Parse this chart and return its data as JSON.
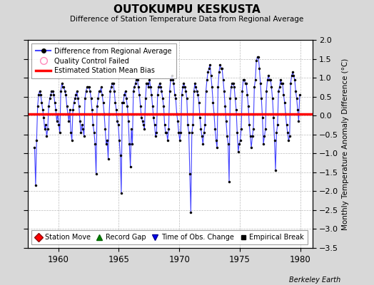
{
  "title": "OUTOKUMPU KESKUSTA",
  "subtitle": "Difference of Station Temperature Data from Regional Average",
  "ylabel": "Monthly Temperature Anomaly Difference (°C)",
  "xlim": [
    1957.5,
    1981.0
  ],
  "ylim": [
    -3.5,
    2.0
  ],
  "yticks": [
    -3.5,
    -3.0,
    -2.5,
    -2.0,
    -1.5,
    -1.0,
    -0.5,
    0.0,
    0.5,
    1.0,
    1.5,
    2.0
  ],
  "xticks": [
    1960,
    1965,
    1970,
    1975,
    1980
  ],
  "bias_value": 0.05,
  "line_color": "#4444FF",
  "bias_color": "#FF0000",
  "bg_color": "#D8D8D8",
  "plot_bg_color": "#FFFFFF",
  "data": [
    [
      1958.042,
      -0.85
    ],
    [
      1958.125,
      -1.85
    ],
    [
      1958.208,
      -0.65
    ],
    [
      1958.292,
      0.25
    ],
    [
      1958.375,
      0.55
    ],
    [
      1958.458,
      0.65
    ],
    [
      1958.542,
      0.55
    ],
    [
      1958.625,
      0.35
    ],
    [
      1958.708,
      0.15
    ],
    [
      1958.792,
      -0.05
    ],
    [
      1958.875,
      -0.35
    ],
    [
      1958.958,
      -0.25
    ],
    [
      1959.042,
      -0.55
    ],
    [
      1959.125,
      -0.35
    ],
    [
      1959.208,
      0.25
    ],
    [
      1959.292,
      0.45
    ],
    [
      1959.375,
      0.55
    ],
    [
      1959.458,
      0.65
    ],
    [
      1959.542,
      0.65
    ],
    [
      1959.625,
      0.55
    ],
    [
      1959.708,
      0.35
    ],
    [
      1959.792,
      0.15
    ],
    [
      1959.875,
      -0.15
    ],
    [
      1959.958,
      0.05
    ],
    [
      1960.042,
      -0.25
    ],
    [
      1960.125,
      -0.45
    ],
    [
      1960.208,
      0.65
    ],
    [
      1960.292,
      0.85
    ],
    [
      1960.375,
      0.75
    ],
    [
      1960.458,
      0.75
    ],
    [
      1960.542,
      0.65
    ],
    [
      1960.625,
      0.55
    ],
    [
      1960.708,
      0.25
    ],
    [
      1960.792,
      0.05
    ],
    [
      1960.875,
      -0.15
    ],
    [
      1960.958,
      0.15
    ],
    [
      1961.042,
      -0.45
    ],
    [
      1961.125,
      -0.65
    ],
    [
      1961.208,
      0.15
    ],
    [
      1961.292,
      0.35
    ],
    [
      1961.375,
      0.45
    ],
    [
      1961.458,
      0.55
    ],
    [
      1961.542,
      0.65
    ],
    [
      1961.625,
      0.45
    ],
    [
      1961.708,
      0.25
    ],
    [
      1961.792,
      -0.15
    ],
    [
      1961.875,
      -0.45
    ],
    [
      1961.958,
      -0.25
    ],
    [
      1962.042,
      -0.35
    ],
    [
      1962.125,
      -0.55
    ],
    [
      1962.208,
      0.45
    ],
    [
      1962.292,
      0.65
    ],
    [
      1962.375,
      0.75
    ],
    [
      1962.458,
      0.75
    ],
    [
      1962.542,
      0.75
    ],
    [
      1962.625,
      0.65
    ],
    [
      1962.708,
      0.45
    ],
    [
      1962.792,
      0.15
    ],
    [
      1962.875,
      -0.25
    ],
    [
      1962.958,
      -0.45
    ],
    [
      1963.042,
      -0.75
    ],
    [
      1963.125,
      -1.55
    ],
    [
      1963.208,
      0.25
    ],
    [
      1963.292,
      0.45
    ],
    [
      1963.375,
      0.65
    ],
    [
      1963.458,
      0.65
    ],
    [
      1963.542,
      0.75
    ],
    [
      1963.625,
      0.55
    ],
    [
      1963.708,
      0.35
    ],
    [
      1963.792,
      0.05
    ],
    [
      1963.875,
      -0.35
    ],
    [
      1963.958,
      -0.75
    ],
    [
      1964.042,
      -0.65
    ],
    [
      1964.125,
      -1.15
    ],
    [
      1964.208,
      0.05
    ],
    [
      1964.292,
      0.65
    ],
    [
      1964.375,
      0.75
    ],
    [
      1964.458,
      0.85
    ],
    [
      1964.542,
      0.85
    ],
    [
      1964.625,
      0.65
    ],
    [
      1964.708,
      0.35
    ],
    [
      1964.792,
      0.15
    ],
    [
      1964.875,
      -0.15
    ],
    [
      1964.958,
      -0.25
    ],
    [
      1965.042,
      -0.65
    ],
    [
      1965.125,
      -1.05
    ],
    [
      1965.208,
      -2.05
    ],
    [
      1965.292,
      0.35
    ],
    [
      1965.375,
      0.35
    ],
    [
      1965.458,
      0.55
    ],
    [
      1965.542,
      0.65
    ],
    [
      1965.625,
      0.45
    ],
    [
      1965.708,
      0.25
    ],
    [
      1965.792,
      -0.15
    ],
    [
      1965.875,
      -0.75
    ],
    [
      1965.958,
      -1.35
    ],
    [
      1966.042,
      -0.35
    ],
    [
      1966.125,
      -0.75
    ],
    [
      1966.208,
      0.65
    ],
    [
      1966.292,
      0.75
    ],
    [
      1966.375,
      0.85
    ],
    [
      1966.458,
      0.95
    ],
    [
      1966.542,
      0.95
    ],
    [
      1966.625,
      0.75
    ],
    [
      1966.708,
      0.55
    ],
    [
      1966.792,
      0.25
    ],
    [
      1966.875,
      -0.05
    ],
    [
      1966.958,
      -0.15
    ],
    [
      1967.042,
      -0.25
    ],
    [
      1967.125,
      -0.35
    ],
    [
      1967.208,
      0.45
    ],
    [
      1967.292,
      0.85
    ],
    [
      1967.375,
      0.85
    ],
    [
      1967.458,
      0.75
    ],
    [
      1967.542,
      0.95
    ],
    [
      1967.625,
      0.75
    ],
    [
      1967.708,
      0.55
    ],
    [
      1967.792,
      0.25
    ],
    [
      1967.875,
      -0.05
    ],
    [
      1967.958,
      -0.25
    ],
    [
      1968.042,
      -0.55
    ],
    [
      1968.125,
      -0.45
    ],
    [
      1968.208,
      0.55
    ],
    [
      1968.292,
      0.75
    ],
    [
      1968.375,
      0.85
    ],
    [
      1968.458,
      0.75
    ],
    [
      1968.542,
      0.65
    ],
    [
      1968.625,
      0.45
    ],
    [
      1968.708,
      0.25
    ],
    [
      1968.792,
      -0.25
    ],
    [
      1968.875,
      -0.45
    ],
    [
      1968.958,
      -0.45
    ],
    [
      1969.042,
      -0.65
    ],
    [
      1969.125,
      -0.35
    ],
    [
      1969.208,
      0.65
    ],
    [
      1969.292,
      0.95
    ],
    [
      1969.375,
      1.05
    ],
    [
      1969.458,
      0.95
    ],
    [
      1969.542,
      0.85
    ],
    [
      1969.625,
      0.55
    ],
    [
      1969.708,
      0.45
    ],
    [
      1969.792,
      0.05
    ],
    [
      1969.875,
      -0.15
    ],
    [
      1969.958,
      -0.45
    ],
    [
      1970.042,
      -0.65
    ],
    [
      1970.125,
      -0.45
    ],
    [
      1970.208,
      0.55
    ],
    [
      1970.292,
      0.75
    ],
    [
      1970.375,
      0.85
    ],
    [
      1970.458,
      0.75
    ],
    [
      1970.542,
      0.65
    ],
    [
      1970.625,
      0.45
    ],
    [
      1970.708,
      -0.25
    ],
    [
      1970.792,
      -0.45
    ],
    [
      1970.875,
      -1.55
    ],
    [
      1970.958,
      -2.55
    ],
    [
      1971.042,
      -0.45
    ],
    [
      1971.125,
      -0.25
    ],
    [
      1971.208,
      0.65
    ],
    [
      1971.292,
      0.85
    ],
    [
      1971.375,
      0.75
    ],
    [
      1971.458,
      0.65
    ],
    [
      1971.542,
      0.55
    ],
    [
      1971.625,
      0.35
    ],
    [
      1971.708,
      -0.05
    ],
    [
      1971.792,
      -0.35
    ],
    [
      1971.875,
      -0.55
    ],
    [
      1971.958,
      -0.75
    ],
    [
      1972.042,
      -0.45
    ],
    [
      1972.125,
      -0.25
    ],
    [
      1972.208,
      0.65
    ],
    [
      1972.292,
      0.95
    ],
    [
      1972.375,
      1.15
    ],
    [
      1972.458,
      1.25
    ],
    [
      1972.542,
      1.35
    ],
    [
      1972.625,
      1.05
    ],
    [
      1972.708,
      0.75
    ],
    [
      1972.792,
      0.35
    ],
    [
      1972.875,
      0.05
    ],
    [
      1972.958,
      -0.35
    ],
    [
      1973.042,
      -0.65
    ],
    [
      1973.125,
      -0.85
    ],
    [
      1973.208,
      0.75
    ],
    [
      1973.292,
      1.15
    ],
    [
      1973.375,
      1.35
    ],
    [
      1973.458,
      1.25
    ],
    [
      1973.542,
      1.25
    ],
    [
      1973.625,
      0.95
    ],
    [
      1973.708,
      0.65
    ],
    [
      1973.792,
      0.25
    ],
    [
      1973.875,
      -0.15
    ],
    [
      1973.958,
      -0.55
    ],
    [
      1974.042,
      -0.75
    ],
    [
      1974.125,
      -1.75
    ],
    [
      1974.208,
      0.45
    ],
    [
      1974.292,
      0.75
    ],
    [
      1974.375,
      0.85
    ],
    [
      1974.458,
      0.85
    ],
    [
      1974.542,
      0.75
    ],
    [
      1974.625,
      0.45
    ],
    [
      1974.708,
      0.15
    ],
    [
      1974.792,
      -0.45
    ],
    [
      1974.875,
      -0.95
    ],
    [
      1974.958,
      -0.75
    ],
    [
      1975.042,
      -0.65
    ],
    [
      1975.125,
      -0.35
    ],
    [
      1975.208,
      0.65
    ],
    [
      1975.292,
      0.95
    ],
    [
      1975.375,
      0.95
    ],
    [
      1975.458,
      0.85
    ],
    [
      1975.542,
      0.85
    ],
    [
      1975.625,
      0.55
    ],
    [
      1975.708,
      0.25
    ],
    [
      1975.792,
      -0.25
    ],
    [
      1975.875,
      -0.55
    ],
    [
      1975.958,
      -0.85
    ],
    [
      1976.042,
      -0.55
    ],
    [
      1976.125,
      -0.35
    ],
    [
      1976.208,
      0.75
    ],
    [
      1976.292,
      0.95
    ],
    [
      1976.375,
      1.45
    ],
    [
      1976.458,
      1.55
    ],
    [
      1976.542,
      1.55
    ],
    [
      1976.625,
      1.25
    ],
    [
      1976.708,
      0.85
    ],
    [
      1976.792,
      0.45
    ],
    [
      1976.875,
      -0.05
    ],
    [
      1976.958,
      -0.75
    ],
    [
      1977.042,
      -0.55
    ],
    [
      1977.125,
      -0.35
    ],
    [
      1977.208,
      0.65
    ],
    [
      1977.292,
      0.95
    ],
    [
      1977.375,
      1.05
    ],
    [
      1977.458,
      0.95
    ],
    [
      1977.542,
      0.95
    ],
    [
      1977.625,
      0.75
    ],
    [
      1977.708,
      0.45
    ],
    [
      1977.792,
      -0.05
    ],
    [
      1977.875,
      -0.65
    ],
    [
      1977.958,
      -1.45
    ],
    [
      1978.042,
      -0.45
    ],
    [
      1978.125,
      -0.25
    ],
    [
      1978.208,
      0.65
    ],
    [
      1978.292,
      0.75
    ],
    [
      1978.375,
      0.95
    ],
    [
      1978.458,
      0.85
    ],
    [
      1978.542,
      0.85
    ],
    [
      1978.625,
      0.55
    ],
    [
      1978.708,
      0.35
    ],
    [
      1978.792,
      0.05
    ],
    [
      1978.875,
      -0.25
    ],
    [
      1978.958,
      -0.45
    ],
    [
      1979.042,
      -0.65
    ],
    [
      1979.125,
      -0.55
    ],
    [
      1979.208,
      0.85
    ],
    [
      1979.292,
      1.05
    ],
    [
      1979.375,
      1.15
    ],
    [
      1979.458,
      1.05
    ],
    [
      1979.542,
      0.95
    ],
    [
      1979.625,
      0.65
    ],
    [
      1979.708,
      0.45
    ],
    [
      1979.792,
      0.15
    ],
    [
      1979.875,
      -0.15
    ],
    [
      1979.958,
      0.55
    ]
  ]
}
